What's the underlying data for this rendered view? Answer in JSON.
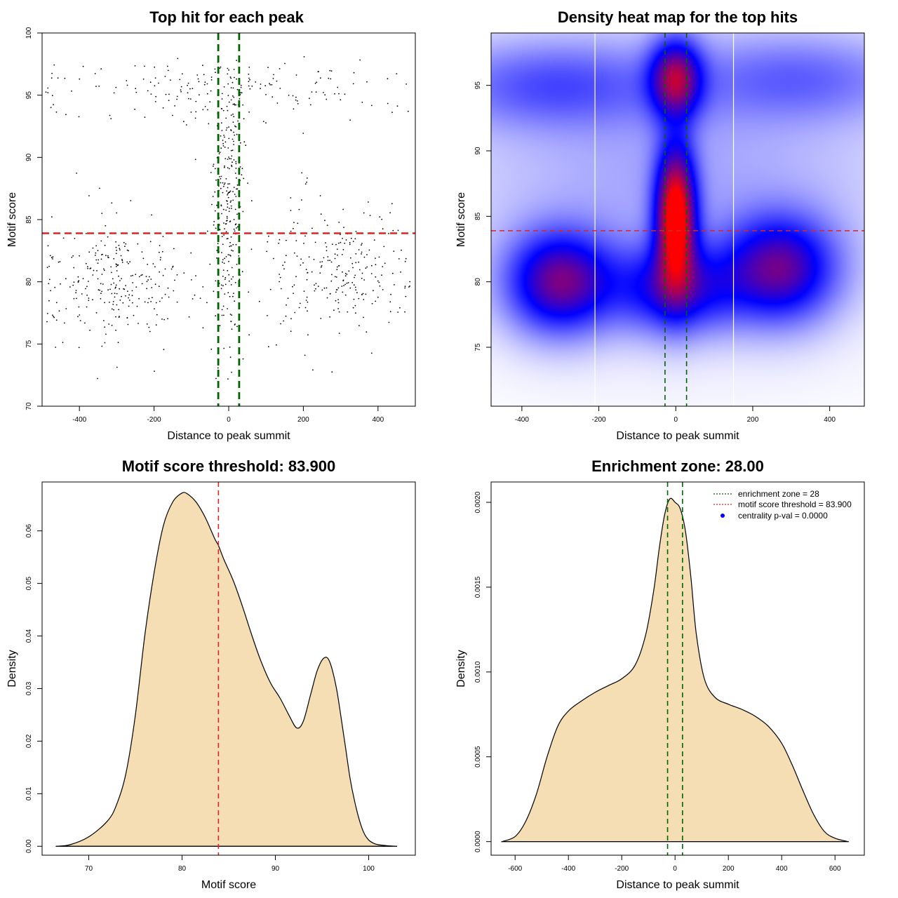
{
  "colors": {
    "threshold": "#d62728",
    "zone": "#006400",
    "fill": "#f5deb3",
    "axis": "#000000",
    "heat_low": "#ffffff",
    "heat_mid": "#0000ff",
    "heat_high": "#ff0000",
    "legend_dot": "#0000ff"
  },
  "chart_data": [
    {
      "id": "scatter",
      "type": "scatter",
      "title": "Top hit for each peak",
      "xlabel": "Distance to peak summit",
      "ylabel": "Motif score",
      "xlim": [
        -500,
        500
      ],
      "ylim": [
        70,
        100
      ],
      "xticks": [
        -400,
        -200,
        0,
        200,
        400
      ],
      "yticks": [
        70,
        75,
        80,
        85,
        90,
        95,
        100
      ],
      "hline": 83.9,
      "vlines": [
        -28,
        28
      ],
      "point_count": 1000,
      "clusters": [
        {
          "x_mean": 0,
          "x_sd": 22,
          "y_mean": 87,
          "y_sd": 6,
          "weight": 0.28
        },
        {
          "x_mean": -300,
          "x_sd": 110,
          "y_mean": 80,
          "y_sd": 2.5,
          "weight": 0.28
        },
        {
          "x_mean": 280,
          "x_sd": 110,
          "y_mean": 80.5,
          "y_sd": 2.6,
          "weight": 0.26
        },
        {
          "x_mean": 0,
          "x_sd": 280,
          "y_mean": 95.5,
          "y_sd": 1.4,
          "weight": 0.18
        }
      ]
    },
    {
      "id": "heatmap",
      "type": "heatmap",
      "title": "Density heat map for the top hits",
      "xlabel": "Distance to peak summit",
      "ylabel": "Motif score",
      "xlim": [
        -480,
        490
      ],
      "ylim": [
        70.5,
        99
      ],
      "xticks": [
        -400,
        -200,
        0,
        200,
        400
      ],
      "yticks": [
        75,
        80,
        85,
        90,
        95
      ],
      "hline": 83.9,
      "vlines": [
        -28,
        28
      ],
      "white_vlines": [
        -210,
        150
      ],
      "blobs": [
        {
          "x": 0,
          "y": 85,
          "sx": 35,
          "sy": 3.5,
          "w": 1.0
        },
        {
          "x": 0,
          "y": 95.5,
          "sx": 45,
          "sy": 2.0,
          "w": 0.65
        },
        {
          "x": 0,
          "y": 79.5,
          "sx": 110,
          "sy": 2.2,
          "w": 0.45
        },
        {
          "x": -300,
          "y": 80,
          "sx": 90,
          "sy": 2.5,
          "w": 0.62
        },
        {
          "x": 270,
          "y": 81,
          "sx": 95,
          "sy": 2.6,
          "w": 0.58
        },
        {
          "x": -320,
          "y": 95,
          "sx": 200,
          "sy": 2.2,
          "w": 0.22
        },
        {
          "x": 320,
          "y": 95.5,
          "sx": 200,
          "sy": 2.2,
          "w": 0.18
        },
        {
          "x": 0,
          "y": 88,
          "sx": 400,
          "sy": 7,
          "w": 0.1
        }
      ]
    },
    {
      "id": "score-density",
      "type": "area",
      "title": "Motif score threshold: 83.900",
      "xlabel": "Motif score",
      "ylabel": "Density",
      "xlim": [
        65,
        105
      ],
      "ylim": [
        -0.0017,
        0.0693
      ],
      "xticks": [
        70,
        80,
        90,
        100
      ],
      "yticks": [
        0.0,
        0.01,
        0.02,
        0.03,
        0.04,
        0.05,
        0.06
      ],
      "ytick_labels": [
        "0.00",
        "0.01",
        "0.02",
        "0.03",
        "0.04",
        "0.05",
        "0.06"
      ],
      "vline": 83.9,
      "x": [
        66.5,
        68,
        70,
        72,
        73,
        74,
        75,
        76,
        77,
        78,
        79,
        80,
        80.6,
        81.5,
        82.5,
        83.5,
        83.9,
        84.5,
        85.5,
        86.5,
        87.5,
        88.5,
        89.5,
        90.5,
        91.5,
        92.3,
        93,
        93.8,
        94.5,
        95.2,
        95.8,
        96.5,
        97,
        97.5,
        98,
        98.5,
        99,
        99.5,
        100,
        100.5,
        101,
        102,
        103
      ],
      "y": [
        0.0,
        0.0003,
        0.0018,
        0.0048,
        0.008,
        0.014,
        0.025,
        0.04,
        0.052,
        0.061,
        0.0655,
        0.0672,
        0.067,
        0.0655,
        0.0625,
        0.0585,
        0.0572,
        0.0545,
        0.0505,
        0.0455,
        0.04,
        0.035,
        0.031,
        0.0282,
        0.0248,
        0.0225,
        0.0238,
        0.029,
        0.0335,
        0.0358,
        0.0352,
        0.0305,
        0.025,
        0.019,
        0.013,
        0.0085,
        0.005,
        0.0025,
        0.0012,
        0.0006,
        0.0003,
        0.0001,
        0.0
      ]
    },
    {
      "id": "distance-density",
      "type": "area",
      "title": "Enrichment zone: 28.00",
      "xlabel": "Distance to peak summit",
      "ylabel": "Density",
      "xlim": [
        -690,
        710
      ],
      "ylim": [
        -8e-05,
        0.00212
      ],
      "xticks": [
        -600,
        -400,
        -200,
        0,
        200,
        400,
        600
      ],
      "yticks": [
        0.0,
        0.0005,
        0.001,
        0.0015,
        0.002
      ],
      "ytick_labels": [
        "0.0000",
        "0.0005",
        "0.0010",
        "0.0015",
        "0.0020"
      ],
      "vlines": [
        -28,
        28
      ],
      "x": [
        -650,
        -600,
        -560,
        -520,
        -480,
        -440,
        -400,
        -350,
        -300,
        -250,
        -200,
        -150,
        -110,
        -80,
        -60,
        -40,
        -20,
        0,
        20,
        40,
        60,
        80,
        110,
        150,
        200,
        250,
        300,
        350,
        400,
        440,
        480,
        520,
        560,
        600,
        650
      ],
      "y": [
        0.0,
        3e-05,
        0.00012,
        0.00028,
        0.0005,
        0.00068,
        0.00077,
        0.00083,
        0.00088,
        0.00092,
        0.00096,
        0.00104,
        0.00122,
        0.00148,
        0.00172,
        0.00192,
        0.00202,
        0.002,
        0.00196,
        0.00182,
        0.00155,
        0.00122,
        0.00096,
        0.00085,
        0.00081,
        0.00078,
        0.00074,
        0.00068,
        0.00058,
        0.00045,
        0.0003,
        0.00016,
        6e-05,
        2e-05,
        0.0
      ],
      "legend": [
        {
          "label": "enrichment zone = 28",
          "style": "dotted-line",
          "color": "#006400"
        },
        {
          "label": "motif score threshold = 83.900",
          "style": "dotted-line",
          "color": "#d62728"
        },
        {
          "label": "centrality p-val = 0.0000",
          "style": "dot",
          "color": "#0000ff"
        }
      ]
    }
  ]
}
